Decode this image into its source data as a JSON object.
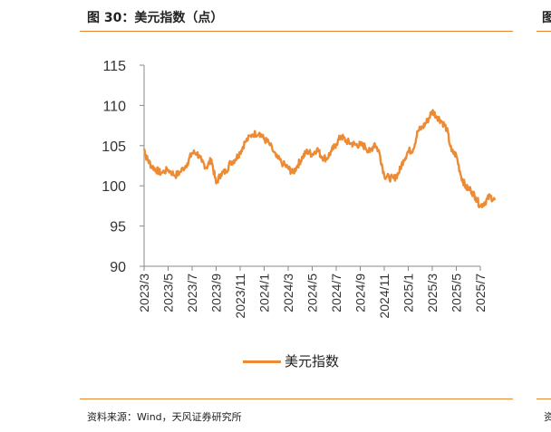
{
  "header": {
    "title": "图 30：美元指数（点）",
    "clipped_title": "图",
    "source": "资料来源：Wind，天风证券研究所",
    "clipped_source": "资"
  },
  "colors": {
    "accent": "#e6873a",
    "series": "#ec8b34"
  },
  "chart_data": {
    "type": "line",
    "title": "美元指数（点）",
    "xlabel": "",
    "ylabel": "",
    "ylim": [
      90,
      115
    ],
    "yticks": [
      "115",
      "110",
      "105",
      "100",
      "95",
      "90"
    ],
    "x_tick_labels": [
      "2023/3",
      "2023/5",
      "2023/7",
      "2023/9",
      "2023/11",
      "2024/1",
      "2024/3",
      "2024/5",
      "2024/7",
      "2024/9",
      "2024/11",
      "2025/1",
      "2025/3",
      "2025/5",
      "2025/7"
    ],
    "legend": [
      "美元指数"
    ],
    "legend_position": "bottom-center",
    "series": [
      {
        "name": "美元指数",
        "x": [
          0,
          0.1,
          0.3,
          0.5,
          0.7,
          1,
          1.3,
          1.5,
          1.8,
          2,
          2.2,
          2.4,
          2.6,
          2.8,
          3,
          3.2,
          3.4,
          3.6,
          3.8,
          4,
          4.2,
          4.5,
          4.8,
          5,
          5.2,
          5.5,
          5.8,
          6,
          6.2,
          6.4,
          6.6,
          6.8,
          7,
          7.2,
          7.4,
          7.6,
          7.8,
          8,
          8.2,
          8.4,
          8.6,
          8.8,
          9,
          9.2,
          9.4,
          9.6,
          9.8,
          10,
          10.2,
          10.4,
          10.6,
          10.8,
          11,
          11.2,
          11.4,
          11.6,
          11.8,
          12,
          12.2,
          12.4,
          12.6,
          12.8,
          13,
          13.2,
          13.4,
          13.6,
          13.8,
          14,
          14.2,
          14.4,
          14.6
        ],
        "values": [
          104.6,
          103.5,
          102.5,
          102.0,
          101.6,
          102.0,
          101.3,
          101.7,
          102.8,
          104.1,
          104.1,
          103.0,
          102.3,
          103.3,
          100.3,
          101.5,
          101.8,
          102.9,
          103.3,
          104.2,
          105.4,
          106.4,
          106.6,
          105.8,
          105.3,
          103.6,
          102.7,
          102.2,
          101.6,
          102.6,
          103.6,
          104.3,
          103.9,
          104.6,
          103.6,
          103.4,
          104.3,
          105.2,
          106.2,
          105.6,
          105.3,
          105.1,
          105.1,
          104.9,
          104.2,
          105.3,
          104.1,
          101.3,
          101.0,
          100.9,
          101.6,
          103.2,
          104.3,
          104.5,
          106.8,
          107.3,
          108.1,
          109.3,
          108.6,
          108.0,
          107.1,
          104.3,
          103.8,
          101.2,
          99.8,
          99.5,
          98.6,
          97.5,
          98.0,
          98.7,
          98.2
        ]
      }
    ]
  }
}
